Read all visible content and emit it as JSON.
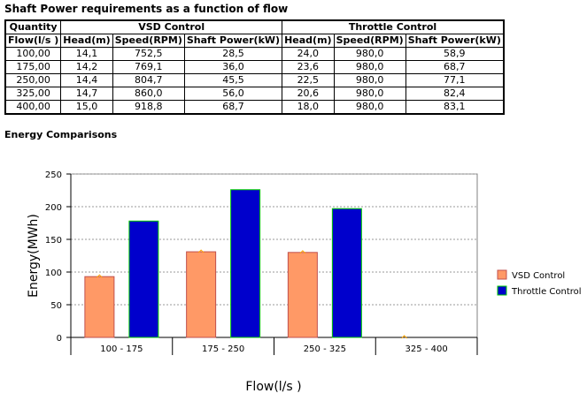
{
  "title": "Shaft Power requirements as a function of flow",
  "table": {
    "group_headers": [
      "Quantity",
      "VSD Control",
      "Throttle Control"
    ],
    "columns": [
      "Flow(l/s )",
      "Head(m)",
      "Speed(RPM)",
      "Shaft Power(kW)",
      "Head(m)",
      "Speed(RPM)",
      "Shaft Power(kW)"
    ],
    "rows": [
      [
        "100,00",
        "14,1",
        "752,5",
        "28,5",
        "24,0",
        "980,0",
        "58,9"
      ],
      [
        "175,00",
        "14,2",
        "769,1",
        "36,0",
        "23,6",
        "980,0",
        "68,7"
      ],
      [
        "250,00",
        "14,4",
        "804,7",
        "45,5",
        "22,5",
        "980,0",
        "77,1"
      ],
      [
        "325,00",
        "14,7",
        "860,0",
        "56,0",
        "20,6",
        "980,0",
        "82,4"
      ],
      [
        "400,00",
        "15,0",
        "918,8",
        "68,7",
        "18,0",
        "980,0",
        "83,1"
      ]
    ]
  },
  "section_title": "Energy Comparisons",
  "chart_data": {
    "type": "bar",
    "categories": [
      "100 - 175",
      "175 - 250",
      "250 - 325",
      "325 - 400"
    ],
    "series": [
      {
        "name": "VSD Control",
        "color": "#FF9966",
        "border": "#C0504D",
        "values": [
          93,
          131,
          130,
          0
        ]
      },
      {
        "name": "Throttle Control",
        "color": "#0000CC",
        "border": "#00CC00",
        "values": [
          178,
          226,
          197,
          0
        ]
      }
    ],
    "ylabel": "Energy(MWh)",
    "xlabel": "Flow(l/s  )",
    "ylim": [
      0,
      250
    ],
    "yticks": [
      "0",
      "50",
      "100",
      "150",
      "200",
      "250"
    ],
    "grid": true,
    "legend_position": "right"
  }
}
